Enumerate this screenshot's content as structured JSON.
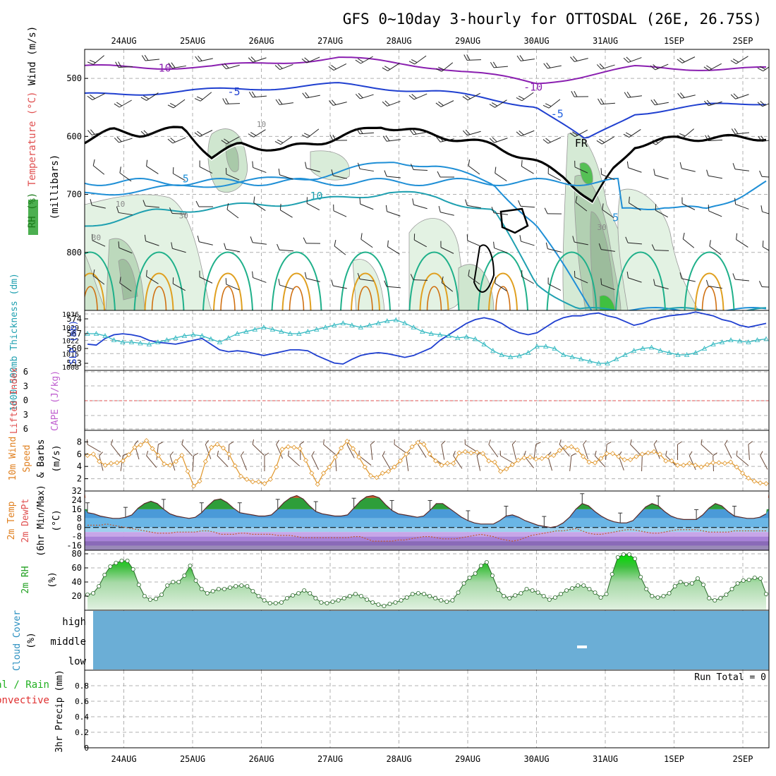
{
  "chart_data": {
    "type": "meteogram",
    "title": "GFS 0~10day 3-hourly for OTTOSDAL (26E, 26.75S)",
    "dates": [
      "24AUG",
      "25AUG",
      "26AUG",
      "27AUG",
      "28AUG",
      "29AUG",
      "30AUG",
      "31AUG",
      "1SEP",
      "2SEP"
    ],
    "panels": [
      {
        "id": "upper",
        "ylabel_parts": [
          {
            "text": "RH (%)",
            "color": "#1a7a1a"
          },
          {
            "text": "Temperature (°C)",
            "color": "#e05050"
          },
          {
            "text": "Wind (m/s)",
            "color": "#000000"
          }
        ],
        "ylabel2": "(millibars)",
        "yticks": [
          "500",
          "600",
          "700",
          "800"
        ],
        "pressure_range": [
          450,
          900
        ],
        "contour_labels": [
          {
            "text": "-10",
            "color": "#8a1fb0",
            "day": 1.55,
            "p": 482
          },
          {
            "text": "-10",
            "color": "#8a1fb0",
            "day": 6.95,
            "p": 515
          },
          {
            "text": "-5",
            "color": "#2040d0",
            "day": 2.6,
            "p": 523
          },
          {
            "text": "-5",
            "color": "#2060e0",
            "day": 7.3,
            "p": 561
          },
          {
            "text": "5",
            "color": "#1f8fd6",
            "day": 1.9,
            "p": 673
          },
          {
            "text": "10",
            "color": "#1fa0b0",
            "day": 3.8,
            "p": 703
          },
          {
            "text": "5",
            "color": "#1f8fd6",
            "day": 8.15,
            "p": 740
          },
          {
            "text": "FR",
            "color": "#000000",
            "day": 7.65,
            "p": 612
          },
          {
            "text": "10",
            "color": "#888888",
            "day": 0.95,
            "p": 715
          },
          {
            "text": "30",
            "color": "#888888",
            "day": 0.6,
            "p": 773
          },
          {
            "text": "30",
            "color": "#888888",
            "day": 1.87,
            "p": 735
          },
          {
            "text": "10",
            "color": "#888888",
            "day": 3.0,
            "p": 578
          },
          {
            "text": "30",
            "color": "#888888",
            "day": 7.95,
            "p": 755
          }
        ]
      },
      {
        "id": "slp",
        "ylabel_left": "1000-500mb Thickness (dm)",
        "ylabel_right": "SLP (mb)",
        "left_ticks": [
          "574",
          "567",
          "560",
          "553"
        ],
        "right_ticks": [
          "1036",
          "1029",
          "1022",
          "1015",
          "1008"
        ],
        "slp_mb": [
          1020,
          1019.5,
          1023,
          1025,
          1025.5,
          1025,
          1024,
          1022,
          1021,
          1020.5,
          1020,
          1021,
          1022,
          1023,
          1020,
          1017,
          1016,
          1016.5,
          1016,
          1015,
          1014,
          1015,
          1016,
          1017,
          1017,
          1016.5,
          1014,
          1012,
          1010,
          1009.5,
          1012,
          1014,
          1015,
          1015.5,
          1015,
          1014,
          1013,
          1014,
          1016,
          1018,
          1022,
          1025,
          1028,
          1031,
          1033,
          1034,
          1033,
          1031,
          1028,
          1026,
          1025,
          1026,
          1029,
          1032,
          1034,
          1035,
          1035,
          1036,
          1036.5,
          1035,
          1034,
          1032,
          1030,
          1031,
          1033,
          1034,
          1035,
          1035.5,
          1036,
          1037,
          1036,
          1035,
          1033,
          1032,
          1030,
          1029,
          1030,
          1031
        ],
        "thickness_dm": [
          567,
          567,
          566,
          564,
          563,
          563,
          562.5,
          562,
          563,
          564,
          565,
          566,
          566.5,
          566,
          564.5,
          563,
          565,
          567,
          568,
          569,
          570,
          569,
          568,
          567,
          567,
          568,
          569,
          570,
          571,
          572,
          571,
          570,
          571,
          572,
          573,
          573.5,
          572,
          570,
          568,
          567,
          566.5,
          566,
          565,
          565.5,
          564.5,
          562,
          559,
          557,
          556,
          556.5,
          558,
          561,
          561,
          560,
          557,
          556,
          555,
          554,
          553,
          553,
          555,
          557,
          559,
          560,
          560.5,
          559,
          558,
          557,
          557,
          558,
          560,
          562,
          563,
          564,
          563.5,
          563,
          564,
          564.5
        ]
      },
      {
        "id": "li",
        "ylabel_left": "Lifted Index",
        "ylabel_right": "CAPE (J/kg)",
        "yticks": [
          "6",
          "3",
          "0",
          "3",
          "6"
        ]
      },
      {
        "id": "wind10",
        "ylabel_parts": [
          {
            "text": "10m Wind",
            "color": "#e08020"
          },
          {
            "text": "Speed",
            "color": "#e08020"
          },
          {
            "text": "& Barbs",
            "color": "#000000"
          }
        ],
        "ylabel2": "(m/s)",
        "yticks": [
          "8",
          "6",
          "4",
          "2"
        ],
        "speed_ms": [
          5.8,
          6.0,
          4.8,
          4.2,
          4.5,
          4.6,
          4.9,
          5.9,
          7.1,
          7.5,
          8.2,
          6.9,
          5.8,
          4.4,
          4.2,
          4.8,
          5.8,
          3.2,
          0.8,
          1.6,
          4.8,
          7.1,
          7.6,
          7.0,
          6.0,
          4.1,
          2.4,
          1.9,
          1.5,
          1.5,
          1.2,
          1.9,
          3.9,
          6.8,
          7.2,
          7.1,
          6.9,
          5.0,
          2.9,
          1.1,
          2.9,
          3.9,
          5.5,
          7.0,
          8.1,
          6.9,
          5.5,
          3.9,
          2.5,
          2.2,
          2.9,
          3.2,
          3.9,
          4.9,
          6.0,
          7.2,
          7.9,
          7.6,
          6.0,
          4.9,
          4.2,
          4.5,
          4.5,
          6.2,
          6.4,
          6.2,
          6.3,
          6.1,
          4.9,
          4.7,
          3.2,
          3.6,
          4.3,
          5.0,
          5.4,
          5.5,
          5.2,
          5.3,
          5.6,
          5.8,
          6.6,
          7.1,
          7.2,
          6.7,
          5.6,
          4.7,
          4.6,
          5.3,
          6.1,
          6.1,
          5.6,
          5.1,
          5.1,
          5.6,
          6.0,
          6.2,
          6.4,
          6.0,
          4.9,
          4.9,
          4.2,
          4.2,
          4.5,
          4.2,
          3.9,
          4.3,
          4.6,
          4.6,
          4.5,
          4.7,
          3.9,
          2.9,
          2.1,
          1.6,
          1.3,
          1.2
        ]
      },
      {
        "id": "temp",
        "ylabel_parts": [
          {
            "text": "2m Temp",
            "color": "#e08020"
          },
          {
            "text": "2m DewPt",
            "color": "#e05050"
          },
          {
            "text": "(6hr Min/Max)",
            "color": "#000000"
          }
        ],
        "ylabel2": "(°C)",
        "yticks": [
          "32",
          "24",
          "16",
          "8",
          "0",
          "-8",
          "-16"
        ],
        "temp_c": [
          13,
          12,
          10,
          9,
          8,
          8,
          9,
          11,
          17,
          21,
          23,
          21,
          16,
          12,
          10,
          9,
          8,
          9,
          13,
          19,
          24,
          25,
          22,
          17,
          13,
          12,
          11,
          10,
          10,
          11,
          16,
          22,
          26,
          28,
          25,
          19,
          14,
          12,
          11,
          10,
          10,
          11,
          17,
          23,
          27,
          28,
          26,
          20,
          15,
          12,
          11,
          10,
          9,
          10,
          15,
          21,
          21,
          17,
          13,
          9,
          6,
          4,
          3,
          3,
          3,
          6,
          10,
          11,
          9,
          6,
          4,
          2,
          1,
          0,
          1,
          4,
          9,
          16,
          21,
          19,
          14,
          10,
          7,
          5,
          4,
          4,
          6,
          12,
          18,
          21,
          19,
          14,
          10,
          8,
          7,
          7,
          7,
          11,
          17,
          21,
          19,
          14,
          10,
          9,
          8,
          8,
          9,
          12
        ],
        "dewpoint_c": [
          2,
          2,
          2,
          3,
          2,
          1,
          0,
          -1,
          -2,
          -3,
          -4,
          -5,
          -5,
          -5,
          -4,
          -4,
          -4,
          -4,
          -3,
          -3,
          -4,
          -6,
          -6,
          -6,
          -5,
          -5,
          -6,
          -6,
          -6,
          -6,
          -7,
          -7,
          -7,
          -8,
          -9,
          -9,
          -9,
          -9,
          -9,
          -9,
          -9,
          -9,
          -8,
          -8,
          -10,
          -12,
          -12,
          -12,
          -12,
          -11,
          -11,
          -10,
          -9,
          -8,
          -8,
          -9,
          -10,
          -10,
          -10,
          -9,
          -8,
          -7,
          -6,
          -7,
          -8,
          -10,
          -11,
          -12,
          -11,
          -9,
          -7,
          -6,
          -5,
          -4,
          -3,
          -3,
          -2,
          -1,
          -3,
          -5,
          -6,
          -6,
          -5,
          -4,
          -3,
          -2,
          -2,
          -3,
          -4,
          -5,
          -5,
          -4,
          -3,
          -2,
          -2,
          -2,
          -2,
          -3,
          -4,
          -4,
          -4,
          -4,
          -3,
          -3,
          -3,
          -3,
          -3,
          -3
        ]
      },
      {
        "id": "rh",
        "ylabel": "2m RH",
        "ylabel2": "(%)",
        "yticks": [
          "80",
          "60",
          "40",
          "20"
        ],
        "rh_pct": [
          22,
          24,
          34,
          50,
          62,
          67,
          70,
          70,
          58,
          36,
          20,
          15,
          16,
          22,
          35,
          40,
          40,
          49,
          63,
          42,
          30,
          24,
          27,
          30,
          30,
          32,
          34,
          35,
          34,
          27,
          20,
          14,
          10,
          10,
          11,
          17,
          21,
          24,
          28,
          24,
          17,
          11,
          10,
          12,
          14,
          17,
          20,
          23,
          20,
          15,
          11,
          8,
          6,
          9,
          11,
          14,
          18,
          23,
          24,
          23,
          20,
          17,
          14,
          12,
          14,
          25,
          38,
          46,
          52,
          63,
          68,
          49,
          29,
          20,
          17,
          21,
          24,
          30,
          28,
          25,
          20,
          15,
          18,
          23,
          28,
          31,
          35,
          35,
          30,
          25,
          18,
          23,
          51,
          75,
          79,
          79,
          73,
          47,
          30,
          20,
          18,
          20,
          24,
          34,
          40,
          37,
          38,
          45,
          36,
          17,
          14,
          17,
          22,
          30,
          38,
          42,
          43,
          46,
          45,
          23
        ]
      },
      {
        "id": "cloud",
        "ylabel": "Cloud Cover",
        "ylabel2": "(%)",
        "level_labels": [
          "high",
          "middle",
          "low"
        ],
        "fill_color": "#6baed6"
      },
      {
        "id": "precip",
        "ylabel_parts": [
          {
            "text": "Total / Rain",
            "color": "#20b020"
          },
          {
            "text": "Convective",
            "color": "#e03030"
          }
        ],
        "ylabel2": "3hr Precip (mm)",
        "yticks": [
          "0.8",
          "0.6",
          "0.4",
          "0.2",
          "0"
        ],
        "run_total": "Run Total = 0",
        "values_mm": []
      }
    ]
  }
}
